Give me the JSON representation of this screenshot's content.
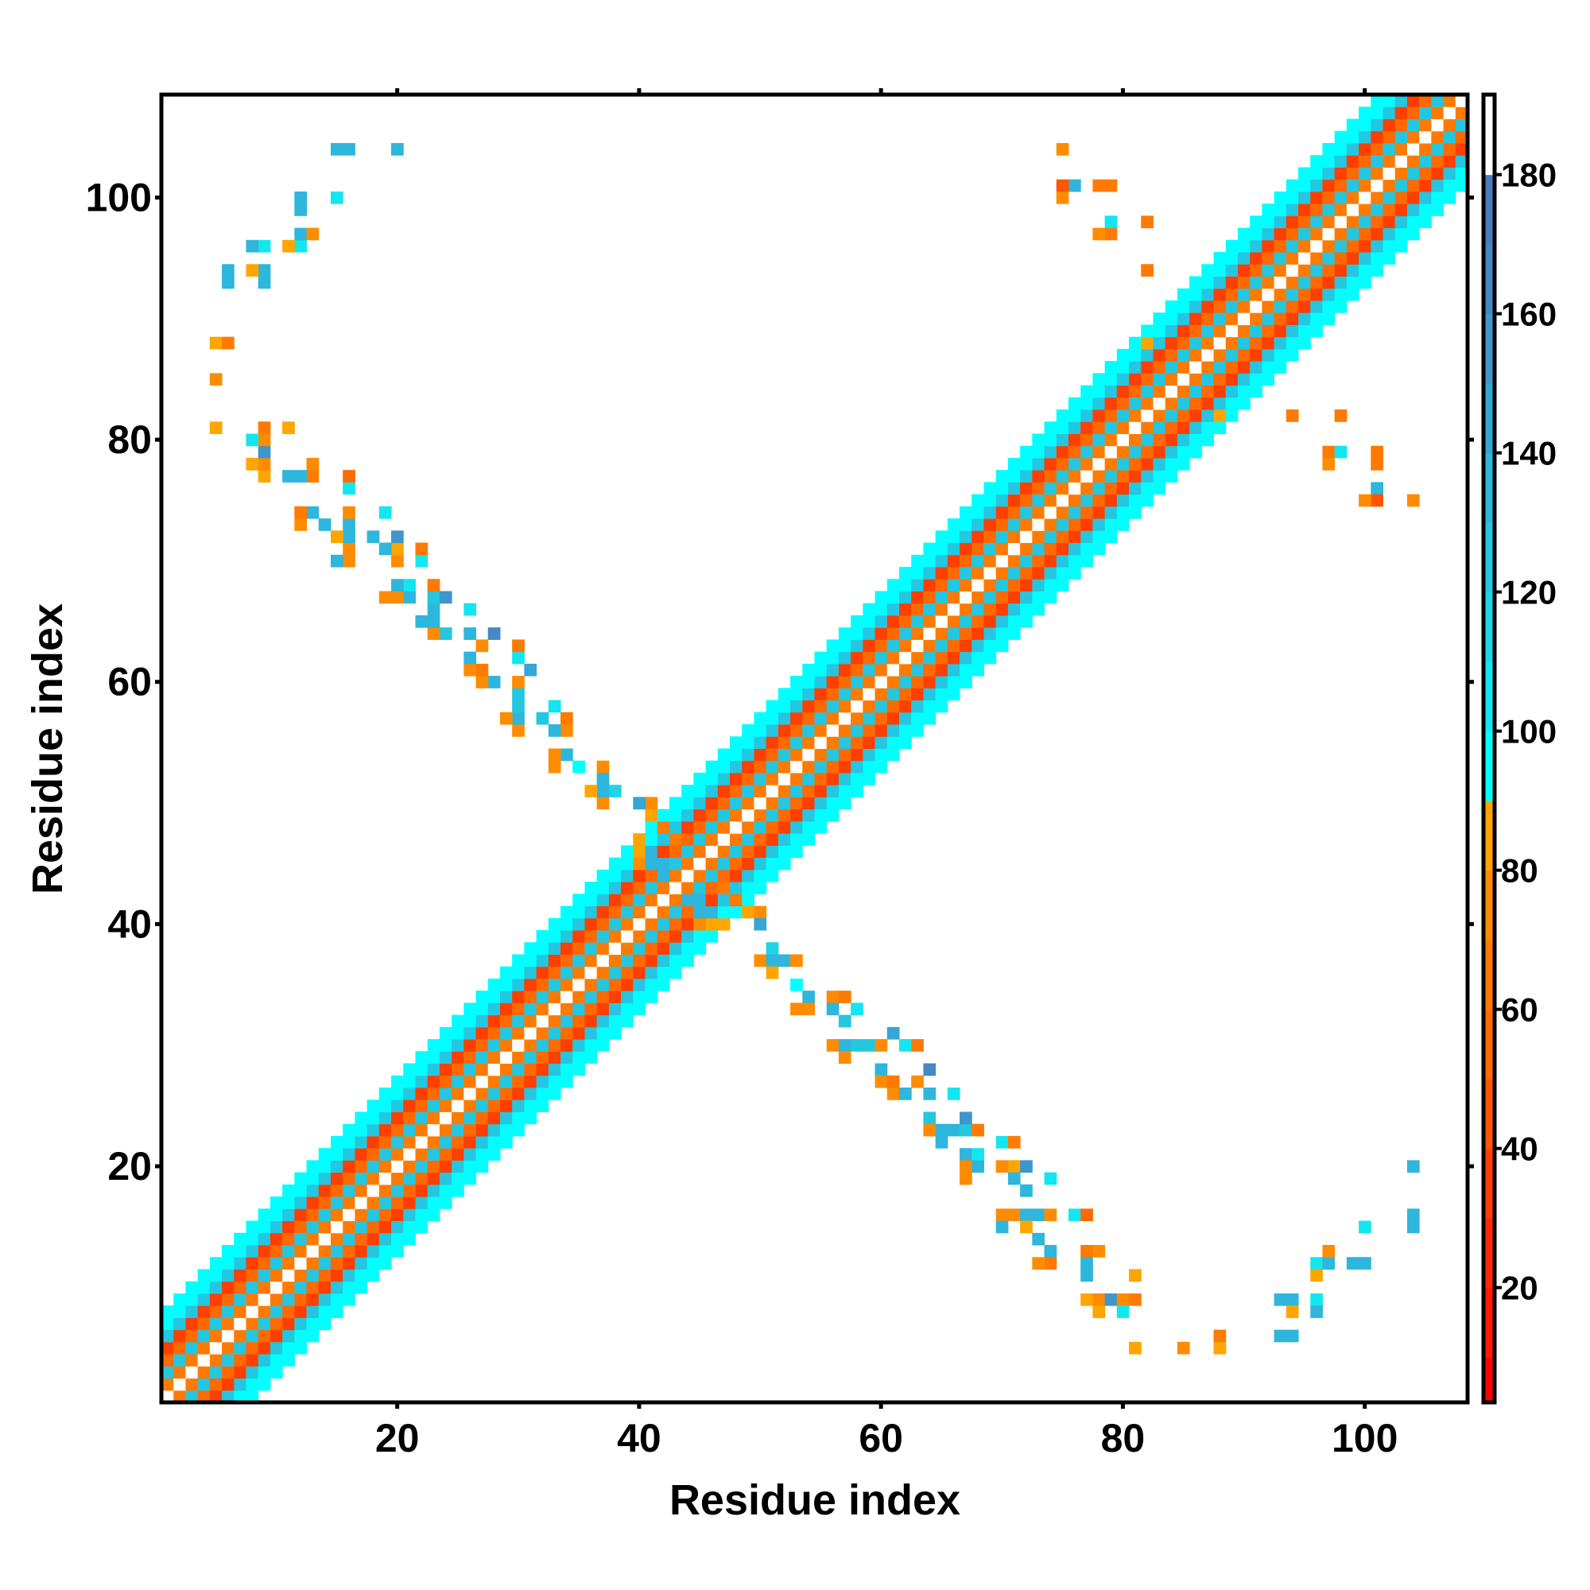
{
  "chart_data": {
    "type": "heatmap",
    "title": "",
    "xlabel": "Residue index",
    "ylabel": "Residue index",
    "n_residues": 108,
    "xlim": [
      0.5,
      108.5
    ],
    "ylim": [
      0.5,
      108.5
    ],
    "x_ticks": [
      20,
      40,
      60,
      80,
      100
    ],
    "y_ticks": [
      20,
      40,
      60,
      80,
      100
    ],
    "x_tick_labels": [
      "20",
      "40",
      "60",
      "80",
      "100"
    ],
    "y_tick_labels": [
      "20",
      "40",
      "60",
      "80",
      "100"
    ],
    "symmetric": true,
    "colorbar": {
      "range": [
        3.5,
        191.5
      ],
      "ticks": [
        20,
        40,
        60,
        80,
        100,
        120,
        140,
        160,
        180
      ],
      "tick_labels": [
        "20",
        "40",
        "60",
        "80",
        "100",
        "120",
        "140",
        "160",
        "180"
      ],
      "bin_width": 10,
      "colors": {
        "0": "#ff0000",
        "10": "#ff1a00",
        "20": "#ff2a00",
        "30": "#ff3f00",
        "40": "#ff5500",
        "50": "#ff6a00",
        "60": "#ff7a00",
        "70": "#ff8c00",
        "80": "#ffa500",
        "90": "#00ffff",
        "100": "#14e6f0",
        "110": "#1fd4e6",
        "120": "#25c6e0",
        "130": "#2eb6dc",
        "140": "#36a6d4",
        "150": "#3e96cc",
        "160": "#4488c4",
        "170": "#4a7cbc",
        "180": "#ffffff"
      }
    },
    "diagonal_band_profile": [
      {
        "offset": 0,
        "value": 186
      },
      {
        "offset": 1,
        "value": 62
      },
      {
        "offset": 2,
        "value": 125
      },
      {
        "offset": 3,
        "value": 58
      },
      {
        "offset": 4,
        "value": 32
      },
      {
        "offset": 5,
        "value": 122
      },
      {
        "offset": 6,
        "value": 95
      },
      {
        "offset": 7,
        "value": 95
      }
    ],
    "off_diagonal_cells": [
      [
        49,
        41,
        80
      ],
      [
        50,
        41,
        75
      ],
      [
        50,
        40,
        140
      ],
      [
        51,
        38,
        110
      ],
      [
        50,
        37,
        70
      ],
      [
        51,
        37,
        130
      ],
      [
        52,
        37,
        130
      ],
      [
        53,
        37,
        75
      ],
      [
        51,
        36,
        80
      ],
      [
        53,
        35,
        95
      ],
      [
        54,
        34,
        130
      ],
      [
        53,
        33,
        70
      ],
      [
        54,
        33,
        70
      ],
      [
        56,
        34,
        70
      ],
      [
        57,
        34,
        60
      ],
      [
        56,
        33,
        130
      ],
      [
        57,
        32,
        120
      ],
      [
        58,
        33,
        100
      ],
      [
        56,
        30,
        70
      ],
      [
        57,
        30,
        130
      ],
      [
        58,
        30,
        125
      ],
      [
        59,
        30,
        125
      ],
      [
        60,
        30,
        70
      ],
      [
        61,
        31,
        140
      ],
      [
        62,
        30,
        100
      ],
      [
        63,
        30,
        60
      ],
      [
        57,
        29,
        75
      ],
      [
        60,
        28,
        130
      ],
      [
        60,
        27,
        70
      ],
      [
        61,
        26,
        70
      ],
      [
        61,
        27,
        60
      ],
      [
        62,
        26,
        130
      ],
      [
        63,
        27,
        70
      ],
      [
        64,
        28,
        160
      ],
      [
        64,
        26,
        130
      ],
      [
        66,
        26,
        100
      ],
      [
        64,
        24,
        125
      ],
      [
        64,
        23,
        75
      ],
      [
        65,
        23,
        130
      ],
      [
        66,
        23,
        130
      ],
      [
        67,
        23,
        125
      ],
      [
        67,
        24,
        150
      ],
      [
        68,
        23,
        60
      ],
      [
        65,
        22,
        130
      ],
      [
        67,
        21,
        130
      ],
      [
        68,
        21,
        100
      ],
      [
        70,
        22,
        100
      ],
      [
        71,
        22,
        60
      ],
      [
        67,
        20,
        70
      ],
      [
        67,
        19,
        75
      ],
      [
        68,
        20,
        130
      ],
      [
        70,
        20,
        70
      ],
      [
        71,
        20,
        80
      ],
      [
        72,
        20,
        150
      ],
      [
        74,
        19,
        100
      ],
      [
        71,
        19,
        130
      ],
      [
        72,
        18,
        130
      ],
      [
        70,
        16,
        70
      ],
      [
        71,
        16,
        75
      ],
      [
        72,
        16,
        130
      ],
      [
        73,
        16,
        130
      ],
      [
        74,
        16,
        75
      ],
      [
        70,
        15,
        130
      ],
      [
        72,
        15,
        80
      ],
      [
        76,
        16,
        100
      ],
      [
        77,
        16,
        50
      ],
      [
        73,
        14,
        130
      ],
      [
        74,
        13,
        130
      ],
      [
        74,
        12,
        60
      ],
      [
        73,
        12,
        70
      ],
      [
        77,
        13,
        60
      ],
      [
        78,
        13,
        70
      ],
      [
        77,
        12,
        130
      ],
      [
        77,
        11,
        130
      ],
      [
        77,
        9,
        80
      ],
      [
        78,
        9,
        70
      ],
      [
        79,
        9,
        150
      ],
      [
        80,
        9,
        70
      ],
      [
        81,
        9,
        60
      ],
      [
        78,
        8,
        80
      ],
      [
        80,
        8,
        100
      ],
      [
        81,
        11,
        80
      ],
      [
        81,
        5,
        80
      ],
      [
        85,
        5,
        70
      ],
      [
        88,
        5,
        80
      ],
      [
        88,
        6,
        60
      ],
      [
        93,
        6,
        130
      ],
      [
        94,
        6,
        130
      ],
      [
        93,
        9,
        130
      ],
      [
        94,
        9,
        130
      ],
      [
        94,
        8,
        80
      ],
      [
        96,
        9,
        100
      ],
      [
        96,
        8,
        130
      ],
      [
        96,
        12,
        100
      ],
      [
        97,
        12,
        130
      ],
      [
        96,
        11,
        80
      ],
      [
        97,
        13,
        70
      ],
      [
        99,
        12,
        130
      ],
      [
        100,
        12,
        130
      ],
      [
        100,
        15,
        100
      ],
      [
        104,
        15,
        130
      ],
      [
        104,
        16,
        130
      ],
      [
        104,
        20,
        130
      ],
      [
        88,
        82,
        80
      ],
      [
        94,
        82,
        60
      ],
      [
        98,
        82,
        60
      ],
      [
        97,
        79,
        60
      ],
      [
        97,
        78,
        70
      ],
      [
        98,
        79,
        100
      ],
      [
        101,
        79,
        60
      ],
      [
        101,
        78,
        60
      ],
      [
        101,
        76,
        130
      ],
      [
        101,
        75,
        40
      ],
      [
        100,
        75,
        70
      ],
      [
        104,
        75,
        70
      ],
      [
        45,
        40,
        70
      ],
      [
        46,
        40,
        80
      ],
      [
        47,
        40,
        80
      ],
      [
        45,
        41,
        130
      ],
      [
        46,
        41,
        130
      ],
      [
        44,
        42,
        130
      ],
      [
        45,
        42,
        130
      ],
      [
        47,
        43,
        60
      ],
      [
        48,
        42,
        60
      ]
    ]
  }
}
